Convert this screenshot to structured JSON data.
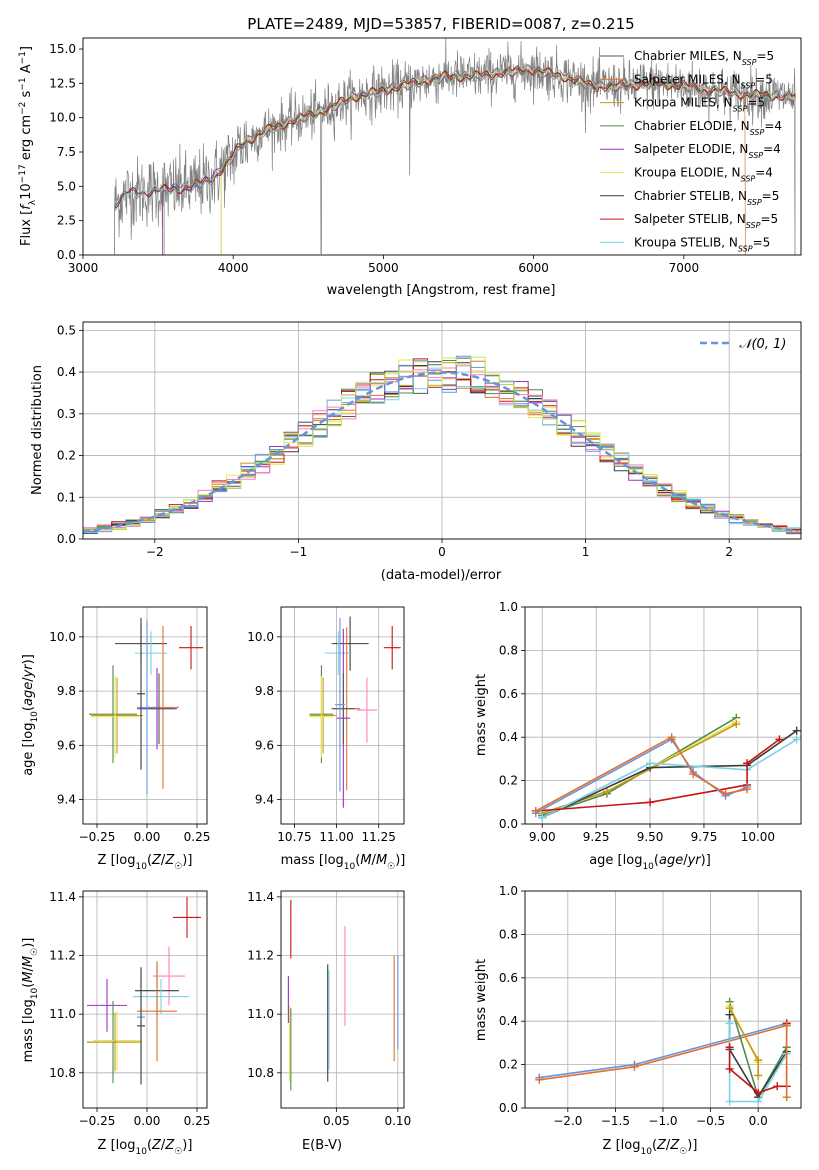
{
  "chart_data": [
    {
      "id": "spectrum",
      "type": "line",
      "title": "PLATE=2489, MJD=53857, FIBERID=0087, z=0.215",
      "xlabel": "wavelength [Angstrom, rest frame]",
      "ylabel": "Flux [f_λ10^-17 erg cm^-2 s^-1 A^-1]",
      "xlim": [
        3000,
        7780
      ],
      "ylim": [
        0,
        15.8
      ],
      "xticks": [
        "3000",
        "4000",
        "5000",
        "6000",
        "7000"
      ],
      "yticks": [
        "0.0",
        "2.5",
        "5.0",
        "7.5",
        "10.0",
        "12.5",
        "15.0"
      ],
      "data_start": 3210,
      "data_end": 7740,
      "legend_position": "right",
      "grid": false,
      "observed_color": "#808080",
      "legend": [
        {
          "name": "Chabrier MILES, N_SSP=5",
          "color": "#5a5a5a"
        },
        {
          "name": "Salpeter MILES, N_SSP=5",
          "color": "#e07030"
        },
        {
          "name": "Kroupa MILES, N_SSP=5",
          "color": "#c8961e"
        },
        {
          "name": "Chabrier ELODIE, N_SSP=4",
          "color": "#4c8c4c"
        },
        {
          "name": "Salpeter ELODIE, N_SSP=4",
          "color": "#9b30c8"
        },
        {
          "name": "Kroupa ELODIE, N_SSP=4",
          "color": "#e6e650"
        },
        {
          "name": "Chabrier STELIB, N_SSP=5",
          "color": "#3c3c3c"
        },
        {
          "name": "Salpeter STELIB, N_SSP=5",
          "color": "#c81414"
        },
        {
          "name": "Kroupa STELIB, N_SSP=5",
          "color": "#7ad2e6"
        }
      ],
      "continuum": [
        [
          3210,
          3.7
        ],
        [
          3300,
          4.5
        ],
        [
          3500,
          4.7
        ],
        [
          3700,
          4.9
        ],
        [
          3850,
          5.5
        ],
        [
          3950,
          6.5
        ],
        [
          4050,
          8.0
        ],
        [
          4200,
          9.0
        ],
        [
          4400,
          9.8
        ],
        [
          4600,
          10.5
        ],
        [
          4800,
          11.5
        ],
        [
          5000,
          12.0
        ],
        [
          5200,
          12.5
        ],
        [
          5400,
          13.0
        ],
        [
          5600,
          13.0
        ],
        [
          5800,
          13.3
        ],
        [
          6000,
          13.5
        ],
        [
          6200,
          13.0
        ],
        [
          6400,
          12.3
        ],
        [
          6600,
          12.3
        ],
        [
          6800,
          12.5
        ],
        [
          7000,
          12.3
        ],
        [
          7200,
          12.0
        ],
        [
          7400,
          11.7
        ],
        [
          7600,
          11.6
        ],
        [
          7740,
          11.5
        ]
      ],
      "absorption_lines": [
        [
          4586,
          0.1
        ],
        [
          5175,
          5.8
        ]
      ]
    },
    {
      "id": "residuals",
      "type": "histogram",
      "xlabel": "(data-model)/error",
      "ylabel": "Normed distribution",
      "xlim": [
        -2.5,
        2.5
      ],
      "ylim": [
        0,
        0.52
      ],
      "xticks": [
        "−2",
        "−1",
        "0",
        "1",
        "2"
      ],
      "yticks": [
        "0.0",
        "0.1",
        "0.2",
        "0.3",
        "0.4",
        "0.5"
      ],
      "grid": true,
      "legend_position": "top-right",
      "reference_curve": {
        "name": "𝒩(0, 1)",
        "color": "#6495dc"
      }
    },
    {
      "id": "age-vs-Z",
      "type": "scatter",
      "xlabel": "Z [log10(Z/Z☉)]",
      "ylabel": "age [log10(age/yr)]",
      "xlim": [
        -0.32,
        0.3
      ],
      "ylim": [
        9.31,
        10.11
      ],
      "xticks": [
        "−0.25",
        "0.00",
        "0.25"
      ],
      "yticks": [
        "9.4",
        "9.6",
        "9.8",
        "10.0"
      ],
      "grid": true,
      "points": [
        {
          "x": -0.03,
          "y": 9.975,
          "xerr": 0.13,
          "yerr": 0.07,
          "color": "#3c3c3c"
        },
        {
          "x": 0.22,
          "y": 9.96,
          "xerr": 0.06,
          "yerr": 0.08,
          "color": "#c81414"
        },
        {
          "x": 0.02,
          "y": 9.94,
          "xerr": 0.08,
          "yerr": 0.08,
          "color": "#7ad2e6"
        },
        {
          "x": 0.08,
          "y": 9.74,
          "xerr": 0.08,
          "yerr": 0.3,
          "color": "#e07030"
        },
        {
          "x": 0.05,
          "y": 9.735,
          "xerr": 0.1,
          "yerr": 0.15,
          "color": "#9b30c8"
        },
        {
          "x": 0.06,
          "y": 9.735,
          "xerr": 0.08,
          "yerr": 0.13,
          "color": "#5a5a5a"
        },
        {
          "x": 0.0,
          "y": 9.74,
          "xerr": 0.05,
          "yerr": 0.32,
          "color": "#6495dc"
        },
        {
          "x": -0.17,
          "y": 9.715,
          "xerr": 0.12,
          "yerr": 0.18,
          "color": "#4c8c4c"
        },
        {
          "x": -0.15,
          "y": 9.71,
          "xerr": 0.13,
          "yerr": 0.14,
          "color": "#c8961e"
        },
        {
          "x": -0.16,
          "y": 9.705,
          "xerr": 0.12,
          "yerr": 0.15,
          "color": "#e6e650"
        },
        {
          "x": -0.03,
          "y": 9.79,
          "xerr": 0.02,
          "yerr": 0.28,
          "color": "#3c3c3c"
        }
      ]
    },
    {
      "id": "age-vs-mass",
      "type": "scatter",
      "xlabel": "mass [log10(M/M☉)]",
      "ylabel": "",
      "xlim": [
        10.67,
        11.4
      ],
      "ylim": [
        9.31,
        10.11
      ],
      "xticks": [
        "10.75",
        "11.00",
        "11.25"
      ],
      "yticks": [
        "9.4",
        "9.6",
        "9.8",
        "10.0"
      ],
      "grid": true,
      "points": [
        {
          "x": 11.08,
          "y": 9.975,
          "xerr": 0.11,
          "yerr": 0.1,
          "color": "#3c3c3c"
        },
        {
          "x": 11.33,
          "y": 9.96,
          "xerr": 0.05,
          "yerr": 0.08,
          "color": "#c81414"
        },
        {
          "x": 11.01,
          "y": 9.94,
          "xerr": 0.08,
          "yerr": 0.08,
          "color": "#7ad2e6"
        },
        {
          "x": 11.18,
          "y": 9.73,
          "xerr": 0.06,
          "yerr": 0.12,
          "color": "#ff7fbf"
        },
        {
          "x": 11.06,
          "y": 9.735,
          "xerr": 0.08,
          "yerr": 0.3,
          "color": "#e07030"
        },
        {
          "x": 11.04,
          "y": 9.7,
          "xerr": 0.04,
          "yerr": 0.33,
          "color": "#9b30c8"
        },
        {
          "x": 11.04,
          "y": 9.735,
          "xerr": 0.07,
          "yerr": 0.13,
          "color": "#5a5a5a"
        },
        {
          "x": 11.02,
          "y": 9.75,
          "xerr": 0.03,
          "yerr": 0.32,
          "color": "#6495dc"
        },
        {
          "x": 10.91,
          "y": 9.715,
          "xerr": 0.07,
          "yerr": 0.18,
          "color": "#4c8c4c"
        },
        {
          "x": 10.92,
          "y": 9.71,
          "xerr": 0.08,
          "yerr": 0.14,
          "color": "#c8961e"
        },
        {
          "x": 10.91,
          "y": 9.705,
          "xerr": 0.07,
          "yerr": 0.15,
          "color": "#e6e650"
        }
      ]
    },
    {
      "id": "weight-vs-age",
      "type": "line",
      "xlabel": "age  [log10(age/yr)]",
      "ylabel": "mass weight",
      "xlim": [
        8.92,
        10.2
      ],
      "ylim": [
        0,
        1.0
      ],
      "xticks": [
        "9.00",
        "9.25",
        "9.50",
        "9.75",
        "10.00"
      ],
      "yticks": [
        "0.0",
        "0.2",
        "0.4",
        "0.6",
        "0.8",
        "1.0"
      ],
      "grid": true,
      "series": [
        {
          "color": "#4c8c4c",
          "points": [
            [
              9.0,
              0.04
            ],
            [
              9.3,
              0.14
            ],
            [
              9.9,
              0.49
            ]
          ]
        },
        {
          "color": "#e6e650",
          "points": [
            [
              9.0,
              0.05
            ],
            [
              9.3,
              0.15
            ],
            [
              9.9,
              0.47
            ]
          ]
        },
        {
          "color": "#c8961e",
          "points": [
            [
              9.0,
              0.05
            ],
            [
              9.3,
              0.15
            ],
            [
              9.9,
              0.46
            ]
          ]
        },
        {
          "color": "#3c3c3c",
          "points": [
            [
              9.0,
              0.03
            ],
            [
              9.5,
              0.26
            ],
            [
              9.95,
              0.27
            ],
            [
              10.18,
              0.43
            ]
          ]
        },
        {
          "color": "#7ad2e6",
          "points": [
            [
              9.0,
              0.03
            ],
            [
              9.5,
              0.28
            ],
            [
              9.95,
              0.25
            ],
            [
              10.18,
              0.39
            ]
          ]
        },
        {
          "color": "#c81414",
          "points": [
            [
              8.97,
              0.06
            ],
            [
              9.5,
              0.1
            ],
            [
              9.95,
              0.18
            ],
            [
              9.95,
              0.28
            ],
            [
              10.1,
              0.39
            ]
          ]
        },
        {
          "color": "#6495dc",
          "points": [
            [
              8.97,
              0.05
            ],
            [
              9.6,
              0.39
            ],
            [
              9.7,
              0.24
            ],
            [
              9.85,
              0.13
            ],
            [
              9.95,
              0.17
            ]
          ]
        },
        {
          "color": "#e07030",
          "points": [
            [
              8.97,
              0.06
            ],
            [
              9.6,
              0.4
            ],
            [
              9.7,
              0.23
            ],
            [
              9.85,
              0.14
            ],
            [
              9.95,
              0.16
            ]
          ]
        }
      ]
    },
    {
      "id": "mass-vs-Z",
      "type": "scatter",
      "xlabel": "Z [log10(Z/Z☉)]",
      "ylabel": "mass [log10(M/M☉)]",
      "xlim": [
        -0.32,
        0.3
      ],
      "ylim": [
        10.68,
        11.42
      ],
      "xticks": [
        "−0.25",
        "0.00",
        "0.25"
      ],
      "yticks": [
        "10.8",
        "11.0",
        "11.2",
        "11.4"
      ],
      "grid": true,
      "points": [
        {
          "x": 0.2,
          "y": 11.33,
          "xerr": 0.07,
          "yerr": 0.07,
          "color": "#c81414"
        },
        {
          "x": 0.11,
          "y": 11.13,
          "xerr": 0.08,
          "yerr": 0.1,
          "color": "#ff7fbf"
        },
        {
          "x": 0.05,
          "y": 11.08,
          "xerr": 0.11,
          "yerr": 0.09,
          "color": "#3c3c3c"
        },
        {
          "x": 0.07,
          "y": 11.06,
          "xerr": 0.14,
          "yerr": 0.06,
          "color": "#7ad2e6"
        },
        {
          "x": -0.2,
          "y": 11.03,
          "xerr": 0.1,
          "yerr": 0.09,
          "color": "#9b30c8"
        },
        {
          "x": 0.05,
          "y": 11.01,
          "xerr": 0.1,
          "yerr": 0.17,
          "color": "#e07030"
        },
        {
          "x": -0.03,
          "y": 10.99,
          "xerr": 0.02,
          "yerr": 0.15,
          "color": "#6495dc"
        },
        {
          "x": -0.17,
          "y": 10.905,
          "xerr": 0.13,
          "yerr": 0.14,
          "color": "#4c8c4c"
        },
        {
          "x": -0.15,
          "y": 10.91,
          "xerr": 0.12,
          "yerr": 0.1,
          "color": "#e6e650"
        },
        {
          "x": -0.16,
          "y": 10.905,
          "xerr": 0.13,
          "yerr": 0.1,
          "color": "#c8961e"
        },
        {
          "x": -0.03,
          "y": 10.96,
          "xerr": 0.02,
          "yerr": 0.2,
          "color": "#3c3c3c"
        }
      ]
    },
    {
      "id": "mass-vs-ebv",
      "type": "scatter",
      "xlabel": "E(B-V)",
      "ylabel": "",
      "xlim": [
        0.005,
        0.105
      ],
      "ylim": [
        10.68,
        11.42
      ],
      "xticks": [
        "0.05",
        "0.10"
      ],
      "yticks": [
        "10.8",
        "11.0",
        "11.2",
        "11.4"
      ],
      "grid": true,
      "points": [
        {
          "x": 0.013,
          "y": 11.29,
          "xerr": 0,
          "yerr": 0.1,
          "color": "#c81414"
        },
        {
          "x": 0.011,
          "y": 11.05,
          "xerr": 0,
          "yerr": 0.08,
          "color": "#9b30c8"
        },
        {
          "x": 0.012,
          "y": 10.9,
          "xerr": 0,
          "yerr": 0.13,
          "color": "#e6e650"
        },
        {
          "x": 0.013,
          "y": 10.88,
          "xerr": 0,
          "yerr": 0.14,
          "color": "#4c8c4c"
        },
        {
          "x": 0.043,
          "y": 10.97,
          "xerr": 0,
          "yerr": 0.2,
          "color": "#3c3c3c"
        },
        {
          "x": 0.044,
          "y": 10.98,
          "xerr": 0,
          "yerr": 0.17,
          "color": "#7ad2e6"
        },
        {
          "x": 0.057,
          "y": 11.13,
          "xerr": 0,
          "yerr": 0.17,
          "color": "#ff7fbf"
        },
        {
          "x": 0.097,
          "y": 11.02,
          "xerr": 0,
          "yerr": 0.18,
          "color": "#e07030"
        },
        {
          "x": 0.1,
          "y": 11.04,
          "xerr": 0,
          "yerr": 0.16,
          "color": "#6495dc"
        }
      ]
    },
    {
      "id": "weight-vs-Z",
      "type": "line",
      "xlabel": "Z [log10(Z/Z☉)]",
      "ylabel": "mass weight",
      "xlim": [
        -2.45,
        0.45
      ],
      "ylim": [
        0,
        1.0
      ],
      "xticks": [
        "−2.0",
        "−1.5",
        "−1.0",
        "−0.5",
        "0.0"
      ],
      "yticks": [
        "0.0",
        "0.2",
        "0.4",
        "0.6",
        "0.8",
        "1.0"
      ],
      "grid": true,
      "series": [
        {
          "color": "#6495dc",
          "points": [
            [
              -2.3,
              0.14
            ],
            [
              -1.3,
              0.2
            ],
            [
              0.3,
              0.39
            ]
          ]
        },
        {
          "color": "#e07030",
          "points": [
            [
              -2.3,
              0.13
            ],
            [
              -1.3,
              0.19
            ],
            [
              0.3,
              0.38
            ]
          ]
        },
        {
          "color": "#4c8c4c",
          "points": [
            [
              -0.3,
              0.49
            ],
            [
              0.0,
              0.05
            ],
            [
              0.3,
              0.28
            ]
          ]
        },
        {
          "color": "#e6e650",
          "points": [
            [
              -0.3,
              0.47
            ],
            [
              0.0,
              0.21
            ],
            [
              0.0,
              0.15
            ]
          ]
        },
        {
          "color": "#c8961e",
          "points": [
            [
              -0.3,
              0.46
            ],
            [
              0.0,
              0.22
            ],
            [
              0.0,
              0.15
            ]
          ]
        },
        {
          "color": "#3c3c3c",
          "points": [
            [
              -0.3,
              0.43
            ],
            [
              -0.3,
              0.27
            ],
            [
              0.0,
              0.05
            ],
            [
              0.3,
              0.26
            ]
          ]
        },
        {
          "color": "#7ad2e6",
          "points": [
            [
              -0.3,
              0.39
            ],
            [
              -0.3,
              0.03
            ],
            [
              0.0,
              0.03
            ],
            [
              0.3,
              0.25
            ]
          ]
        },
        {
          "color": "#c81414",
          "points": [
            [
              -0.3,
              0.28
            ],
            [
              -0.3,
              0.18
            ],
            [
              0.0,
              0.07
            ],
            [
              0.2,
              0.1
            ],
            [
              0.3,
              0.1
            ],
            [
              0.3,
              0.39
            ]
          ]
        },
        {
          "color": "#e07030",
          "points": [
            [
              0.3,
              0.38
            ],
            [
              0.3,
              0.05
            ]
          ]
        }
      ]
    }
  ]
}
